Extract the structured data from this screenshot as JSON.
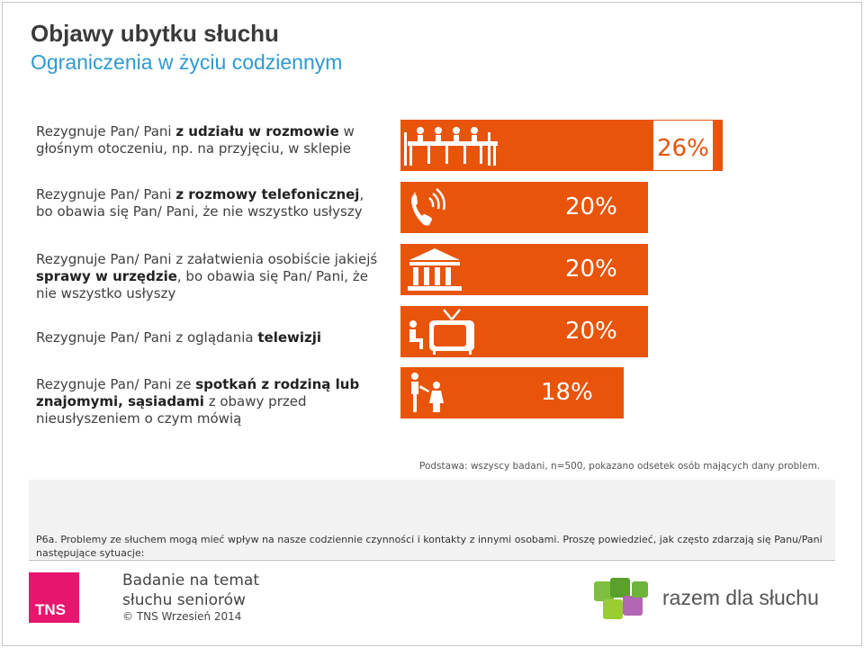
{
  "header": {
    "title": "Objawy ubytku słuchu",
    "subtitle": "Ograniczenia w życiu codziennym"
  },
  "chart_data": {
    "type": "bar",
    "orientation": "horizontal",
    "title": "Objawy ubytku słuchu",
    "subtitle": "Ograniczenia w życiu codziennym",
    "categories": [
      "Rezygnuje Pan/ Pani z udziału w rozmowie w głośnym otoczeniu, np. na przyjęciu, w sklepie",
      "Rezygnuje Pan/ Pani z rozmowy telefonicznej, bo obawia się Pan/ Pani, że nie wszystko usłyszy",
      "Rezygnuje Pan/ Pani z załatwienia osobiście jakiejś sprawy w urzędzie, bo obawia się Pan/ Pani, że nie wszystko usłyszy",
      "Rezygnuje Pan/ Pani z oglądania telewizji",
      "Rezygnuje Pan/ Pani ze spotkań z rodziną lub znajomymi, sąsiadami z obawy przed nieusłyszeniem o czym mówią"
    ],
    "values": [
      26,
      20,
      20,
      20,
      18
    ],
    "value_labels": [
      "26%",
      "20%",
      "20%",
      "20%",
      "18%"
    ],
    "bar_color": "#e8540a",
    "value_text_color": "#ffffff",
    "xlim": [
      0,
      30
    ],
    "grid": false,
    "icons": [
      "meeting-table-icon",
      "phone-icon",
      "office-building-icon",
      "tv-watching-icon",
      "family-meeting-icon"
    ]
  },
  "rows": [
    {
      "label_pre": "Rezygnuje Pan/ Pani ",
      "label_bold": "z udziału w rozmowie",
      "label_post": " w głośnym otoczeniu, np. na przyjęciu, w sklepie"
    },
    {
      "label_pre": "Rezygnuje Pan/ Pani ",
      "label_bold": "z rozmowy telefonicznej",
      "label_post": ", bo obawia się Pan/ Pani, że nie wszystko usłyszy"
    },
    {
      "label_pre": "Rezygnuje Pan/ Pani z załatwienia osobiście jakiejś ",
      "label_bold": "sprawy w urzędzie",
      "label_post": ", bo obawia się Pan/ Pani, że nie wszystko usłyszy"
    },
    {
      "label_pre": "Rezygnuje Pan/ Pani z oglądania ",
      "label_bold": "telewizji",
      "label_post": ""
    },
    {
      "label_pre": "Rezygnuje Pan/ Pani ze ",
      "label_bold": "spotkań z rodziną lub znajomymi, sąsiadami",
      "label_post": " z obawy przed nieusłyszeniem o czym mówią"
    }
  ],
  "base_note": "Podstawa: wszyscy badani, n=500, pokazano odsetek osób mających dany problem.",
  "question": "P6a. Problemy ze słuchem mogą mieć wpływ na nasze codziennie czynności i kontakty z innymi osobami. Proszę powiedzieć, jak często zdarzają się Panu/Pani następujące sytuacje:",
  "footer": {
    "tns_logo_text": "TNS",
    "title_line1": "Badanie na temat",
    "title_line2": "słuchu seniorów",
    "copyright": "© TNS Wrzesień 2014",
    "partner_logo_text": "razem dla słuchu",
    "partner_logo_colors": [
      "#7fbf3f",
      "#5aa02c",
      "#b366b3"
    ]
  }
}
